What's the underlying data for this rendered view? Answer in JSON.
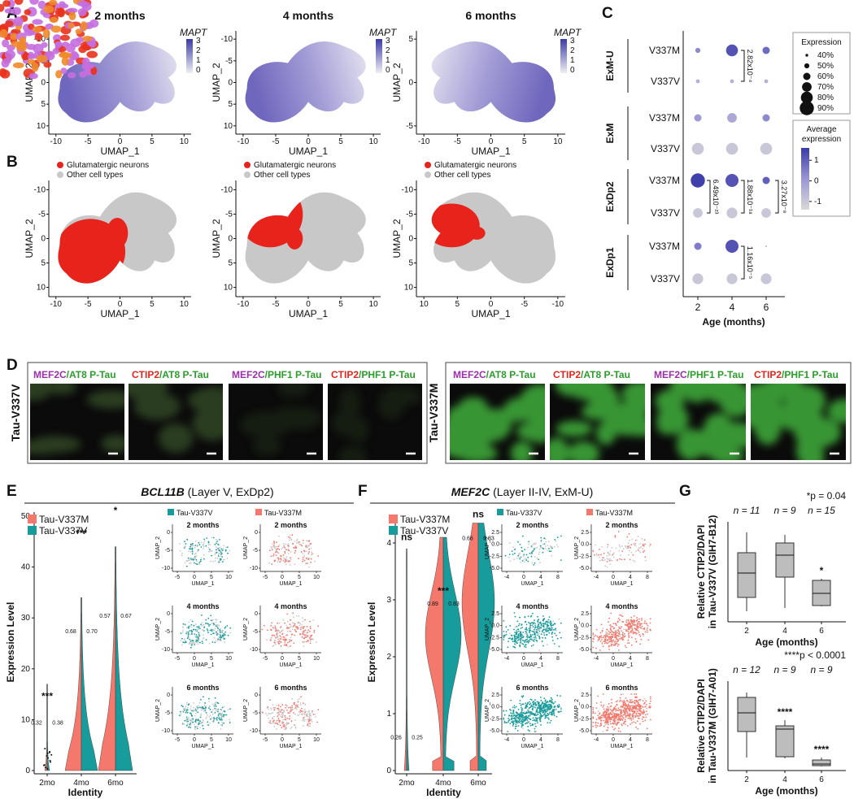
{
  "panel_a": {
    "label": "A",
    "titles": [
      "2 months",
      "4 months",
      "6 months"
    ],
    "legend_title": "MAPT",
    "legend_ticks": [
      "3",
      "2",
      "1",
      "0"
    ],
    "x_label": "UMAP_1",
    "y_label": "UMAP_2",
    "x_ticks": [
      [
        "-10",
        "-5",
        "0",
        "5",
        "10"
      ],
      [
        "-10",
        "-5",
        "0",
        "5",
        "10"
      ],
      [
        "-10",
        "-5",
        "0",
        "5",
        "10"
      ]
    ],
    "y_ticks": [
      [
        "-10",
        "-5",
        "0",
        "5",
        "10"
      ],
      [
        "-10",
        "-5",
        "0",
        "5",
        "10"
      ],
      [
        "5",
        "0",
        "-5"
      ]
    ]
  },
  "panel_b": {
    "label": "B",
    "legend": [
      "Glutamatergic neurons",
      "Other cell types"
    ],
    "colors": [
      "#e8231c",
      "#c8c8c8"
    ],
    "x_label": "UMAP_1",
    "y_label": "UMAP_2",
    "x_ticks": [
      [
        "-10",
        "-5",
        "0",
        "5",
        "10"
      ],
      [
        "-10",
        "-5",
        "0",
        "5",
        "10"
      ],
      [
        "10",
        "5",
        "0",
        "-5",
        "-10"
      ]
    ],
    "y_ticks": [
      [
        "-10",
        "-5",
        "0",
        "5",
        "10"
      ],
      [
        "-10",
        "-5",
        "0",
        "5",
        "10"
      ],
      [
        "-10",
        "-5",
        "0",
        "5",
        "10"
      ]
    ]
  },
  "panel_c": {
    "label": "C",
    "groups": [
      "ExM-U",
      "ExM",
      "ExDp2",
      "ExDp1"
    ],
    "genotypes": [
      "V337M",
      "V337V"
    ],
    "ages": [
      "2",
      "4",
      "6"
    ],
    "x_label": "Age (months)",
    "pct": [
      [
        50,
        80,
        60
      ],
      [
        45,
        45,
        45
      ],
      [
        60,
        70,
        60
      ],
      [
        80,
        80,
        80
      ],
      [
        90,
        85,
        60
      ],
      [
        70,
        75,
        70
      ],
      [
        60,
        85,
        35
      ],
      [
        75,
        75,
        75
      ]
    ],
    "avg": [
      [
        0.3,
        1.2,
        0.8
      ],
      [
        -0.5,
        -0.5,
        -0.5
      ],
      [
        0,
        -0.3,
        0.3
      ],
      [
        -1,
        -1,
        -1
      ],
      [
        1.5,
        1.2,
        1
      ],
      [
        -1,
        -1,
        -1
      ],
      [
        0.5,
        1.2,
        -0.5
      ],
      [
        -1,
        -1,
        -1
      ]
    ],
    "p_values": [
      "2.82x10⁻⁴",
      "6.49x10⁻²³",
      "1.88x10⁻¹⁸",
      "3.27x10⁻⁸",
      "1.16x10⁻⁵"
    ],
    "size_legend_title": "Expression",
    "size_legend": [
      {
        "value": 40,
        "label": "40%"
      },
      {
        "value": 50,
        "label": "50%"
      },
      {
        "value": 60,
        "label": "60%"
      },
      {
        "value": 70,
        "label": "70%"
      },
      {
        "value": 80,
        "label": "80%"
      },
      {
        "value": 90,
        "label": "90%"
      }
    ],
    "color_legend_title": [
      "Average",
      "expression"
    ],
    "color_ticks": [
      1,
      0,
      -1
    ],
    "clim": [
      -1.4,
      1.6
    ]
  },
  "panel_d": {
    "label": "D",
    "rows": [
      "Tau-V337V",
      "Tau-V337M"
    ],
    "captions": [
      [
        "MEF2C",
        "/AT8 P-Tau"
      ],
      [
        "CTIP2",
        "/AT8 P-Tau"
      ],
      [
        "MEF2C",
        "/PHF1 P-Tau"
      ],
      [
        "CTIP2",
        "/PHF1 P-Tau"
      ]
    ]
  },
  "panel_e": {
    "label": "E",
    "gene": "BCL11B",
    "subtitle": " (Layer V, ExDp2)",
    "y_label": "Expression Level",
    "x_label": "Identity",
    "categories": [
      "2mo",
      "4mo",
      "6mo"
    ],
    "ylim": [
      0,
      50
    ],
    "yticks": [
      0,
      10,
      20,
      30,
      40,
      50
    ],
    "legend": [
      {
        "name": "Tau-V337M",
        "color": "#f4786c"
      },
      {
        "name": "Tau-V337V",
        "color": "#179b9b"
      }
    ],
    "significance": [
      "***",
      "***",
      "*"
    ],
    "fractions": [
      [
        "0.32",
        "0.38"
      ],
      [
        "0.68",
        "0.70"
      ],
      [
        "0.57",
        "0.67"
      ]
    ],
    "umap": {
      "columns": [
        "Tau-V337V",
        "Tau-V337M"
      ],
      "titles": [
        "2 months",
        "4 months",
        "6 months"
      ],
      "x_label": "UMAP_1",
      "y_label": "UMAP_2",
      "x_ticks": [
        "-5",
        "0",
        "5",
        "10"
      ],
      "y_ticks": [
        "0",
        "-5",
        "-10"
      ]
    }
  },
  "panel_f": {
    "label": "F",
    "gene": "MEF2C",
    "subtitle": " (Layer II-IV, ExM-U)",
    "y_label": "Expression Level",
    "x_label": "Identity",
    "categories": [
      "2mo",
      "4mo",
      "6mo"
    ],
    "ylim": [
      0,
      4.4
    ],
    "yticks": [
      0,
      1,
      2,
      3,
      4
    ],
    "legend": [
      {
        "name": "Tau-V337M",
        "color": "#f4786c"
      },
      {
        "name": "Tau-V337V",
        "color": "#179b9b"
      }
    ],
    "significance": [
      "ns",
      "***",
      "ns"
    ],
    "fractions": [
      [
        "0.26",
        "0.25"
      ],
      [
        "0.89",
        "0.83"
      ],
      [
        "0.66",
        "0.83"
      ]
    ],
    "umap": {
      "columns": [
        "Tau-V337V",
        "Tau-V337M"
      ],
      "titles": [
        "2 months",
        "4 months",
        "6 months"
      ],
      "x_label": "UMAP_1",
      "y_label": "UMAP_2",
      "x_ticks": [
        "-4",
        "0",
        "4",
        "8"
      ],
      "y_ticks": [
        "2.5",
        "0.0",
        "-2.5",
        "-5.0"
      ]
    }
  },
  "panel_g": {
    "label": "G",
    "x_label": "Age (months)",
    "categories": [
      "2",
      "4",
      "6"
    ],
    "plots": [
      {
        "p": "*p = 0.04",
        "n": [
          "n = 11",
          "n = 9",
          "n = 15"
        ],
        "y_label": [
          "Relative CTIP2/DAPI",
          "in Tau-V337V (GIH7-B12)"
        ],
        "stars": [
          "*"
        ]
      },
      {
        "p": "****p < 0.0001",
        "n": [
          "n = 12",
          "n = 9",
          "n = 9"
        ],
        "y_label": [
          "Relative CTIP2/DAPI",
          "in Tau-V337M (GIH7-A01)"
        ],
        "stars": [
          "****",
          "****"
        ]
      }
    ]
  }
}
